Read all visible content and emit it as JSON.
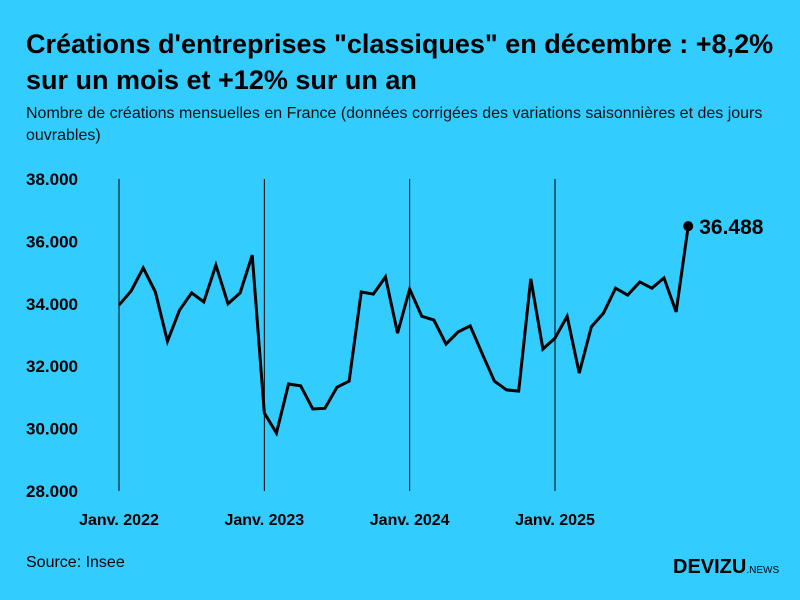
{
  "title": "Créations d'entreprises \"classiques\" en décembre : +8,2% sur un mois et +12% sur un an",
  "subtitle": "Nombre de créations mensuelles en France (données corrigées des variations saisonnières et des jours ouvrables)",
  "source": "Source: Insee",
  "logo": {
    "main": "DEVIZU",
    "suffix": ".NEWS"
  },
  "colors": {
    "background": "#33ccff",
    "line": "#000000"
  },
  "chart_data": {
    "type": "line",
    "title": "Créations d'entreprises \"classiques\" en décembre : +8,2% sur un mois et +12% sur un an",
    "xlabel": "",
    "ylabel": "",
    "ylim": [
      28000,
      38000
    ],
    "y_ticks": [
      28000,
      30000,
      32000,
      34000,
      36000,
      38000
    ],
    "y_tick_labels": [
      "28.000",
      "30.000",
      "32.000",
      "34.000",
      "36.000",
      "38.000"
    ],
    "x_tick_labels": [
      "Janv. 2022",
      "Janv. 2023",
      "Janv. 2024",
      "Janv. 2025"
    ],
    "grid": "vertical lines at January",
    "start": "2022-01",
    "x": [
      "2022-01",
      "2022-02",
      "2022-03",
      "2022-04",
      "2022-05",
      "2022-06",
      "2022-07",
      "2022-08",
      "2022-09",
      "2022-10",
      "2022-11",
      "2022-12",
      "2023-01",
      "2023-02",
      "2023-03",
      "2023-04",
      "2023-05",
      "2023-06",
      "2023-07",
      "2023-08",
      "2023-09",
      "2023-10",
      "2023-11",
      "2023-12",
      "2024-01",
      "2024-02",
      "2024-03",
      "2024-04",
      "2024-05",
      "2024-06",
      "2024-07",
      "2024-08",
      "2024-09",
      "2024-10",
      "2024-11",
      "2024-12",
      "2025-01",
      "2025-02",
      "2025-03",
      "2025-04",
      "2025-05",
      "2025-06",
      "2025-07",
      "2025-08",
      "2025-09",
      "2025-10",
      "2025-11",
      "2025-12"
    ],
    "values": [
      33960,
      34410,
      35150,
      34380,
      32800,
      33800,
      34350,
      34060,
      35240,
      34000,
      34350,
      35560,
      30500,
      29860,
      31430,
      31370,
      30630,
      30650,
      31330,
      31520,
      34380,
      34310,
      34860,
      33060,
      34470,
      33600,
      33480,
      32710,
      33100,
      33290,
      32390,
      31520,
      31240,
      31200,
      34800,
      32550,
      32900,
      33600,
      31780,
      33260,
      33700,
      34500,
      34280,
      34700,
      34500,
      34830,
      33740,
      36488
    ],
    "last_label": "36.488"
  }
}
